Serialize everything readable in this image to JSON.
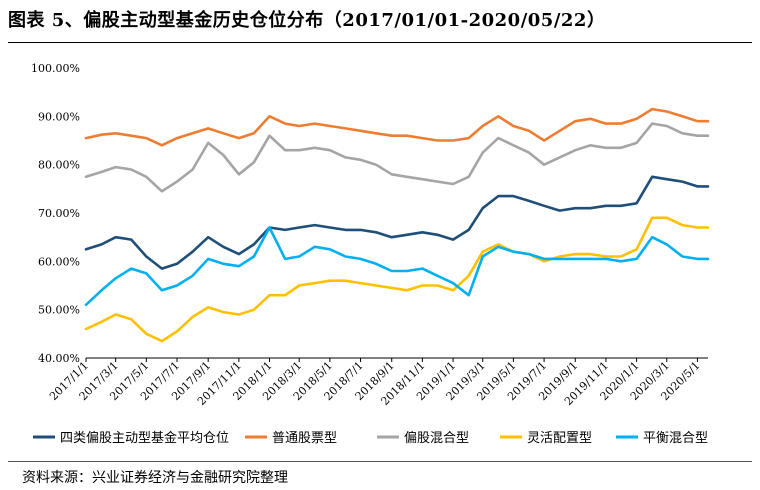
{
  "header": {
    "title": "图表 5、偏股主动型基金历史仓位分布（2017/01/01-2020/05/22）"
  },
  "footer": {
    "source": "资料来源：兴业证券经济与金融研究院整理"
  },
  "chart_data": {
    "type": "line",
    "title": "图表 5、偏股主动型基金历史仓位分布（2017/01/01-2020/05/22）",
    "xlabel": "",
    "ylabel": "",
    "ylim": [
      40,
      100
    ],
    "y_ticks": [
      "40.00%",
      "50.00%",
      "60.00%",
      "70.00%",
      "80.00%",
      "90.00%",
      "100.00%"
    ],
    "x_ticks": [
      "2017/1/1",
      "2017/3/1",
      "2017/5/1",
      "2017/7/1",
      "2017/9/1",
      "2017/11/1",
      "2018/1/1",
      "2018/3/1",
      "2018/5/1",
      "2018/7/1",
      "2018/9/1",
      "2018/11/1",
      "2019/1/1",
      "2019/3/1",
      "2019/5/1",
      "2019/7/1",
      "2019/9/1",
      "2019/11/1",
      "2020/1/1",
      "2020/3/1",
      "2020/5/1"
    ],
    "x": [
      "2017/1/1",
      "2017/2/1",
      "2017/3/1",
      "2017/4/1",
      "2017/5/1",
      "2017/6/1",
      "2017/7/1",
      "2017/8/1",
      "2017/9/1",
      "2017/10/1",
      "2017/11/1",
      "2017/12/1",
      "2018/1/1",
      "2018/2/1",
      "2018/3/1",
      "2018/4/1",
      "2018/5/1",
      "2018/6/1",
      "2018/7/1",
      "2018/8/1",
      "2018/9/1",
      "2018/10/1",
      "2018/11/1",
      "2018/12/1",
      "2019/1/1",
      "2019/2/1",
      "2019/3/1",
      "2019/4/1",
      "2019/5/1",
      "2019/6/1",
      "2019/7/1",
      "2019/8/1",
      "2019/9/1",
      "2019/10/1",
      "2019/11/1",
      "2019/12/1",
      "2020/1/1",
      "2020/2/1",
      "2020/3/1",
      "2020/4/1",
      "2020/5/1",
      "2020/5/22"
    ],
    "grid": false,
    "legend": "bottom",
    "series": [
      {
        "name": "四类偏股主动型基金平均仓位",
        "color": "#1f4e79",
        "values": [
          62.5,
          63.5,
          65,
          64.5,
          61,
          58.5,
          59.5,
          62,
          65,
          63,
          61.5,
          63.5,
          67,
          66.5,
          67,
          67.5,
          67,
          66.5,
          66.5,
          66,
          65,
          65.5,
          66,
          65.5,
          64.5,
          66.5,
          71,
          73.5,
          73.5,
          72.5,
          71.5,
          70.5,
          71,
          71,
          71.5,
          71.5,
          72,
          77.5,
          77,
          76.5,
          75.5,
          75.5
        ]
      },
      {
        "name": "普通股票型",
        "color": "#ed7d31",
        "values": [
          85.5,
          86.2,
          86.5,
          86,
          85.5,
          84,
          85.5,
          86.5,
          87.5,
          86.5,
          85.5,
          86.5,
          90,
          88.5,
          88,
          88.5,
          88,
          87.5,
          87,
          86.5,
          86,
          86,
          85.5,
          85,
          85,
          85.5,
          88,
          90,
          88,
          87,
          85,
          87,
          89,
          89.5,
          88.5,
          88.5,
          89.5,
          91.5,
          91,
          90,
          89,
          89
        ]
      },
      {
        "name": "偏股混合型",
        "color": "#a5a5a5",
        "values": [
          77.5,
          78.5,
          79.5,
          79,
          77.5,
          74.5,
          76.5,
          79,
          84.5,
          82,
          78,
          80.5,
          86,
          83,
          83,
          83.5,
          83,
          81.5,
          81,
          80,
          78,
          77.5,
          77,
          76.5,
          76,
          77.5,
          82.5,
          85.5,
          84,
          82.5,
          80,
          81.5,
          83,
          84,
          83.5,
          83.5,
          84.5,
          88.5,
          88,
          86.5,
          86,
          86
        ]
      },
      {
        "name": "灵活配置型",
        "color": "#ffc000",
        "values": [
          46,
          47.5,
          49,
          48,
          45,
          43.5,
          45.5,
          48.5,
          50.5,
          49.5,
          49,
          50,
          53,
          53,
          55,
          55.5,
          56,
          56,
          55.5,
          55,
          54.5,
          54,
          55,
          55,
          54,
          57,
          62,
          63.5,
          62,
          61.5,
          60,
          61,
          61.5,
          61.5,
          61,
          61,
          62.5,
          69,
          69,
          67.5,
          67,
          67
        ]
      },
      {
        "name": "平衡混合型",
        "color": "#00b0f0",
        "values": [
          51,
          54,
          56.5,
          58.5,
          57.5,
          54,
          55,
          57,
          60.5,
          59.5,
          59,
          61,
          67,
          60.5,
          61,
          63,
          62.5,
          61,
          60.5,
          59.5,
          58,
          58,
          58.5,
          57,
          55.5,
          53,
          61,
          63,
          62,
          61.5,
          60.5,
          60.5,
          60.5,
          60.5,
          60.5,
          60,
          60.5,
          65,
          63.5,
          61,
          60.5,
          60.5
        ]
      }
    ]
  }
}
